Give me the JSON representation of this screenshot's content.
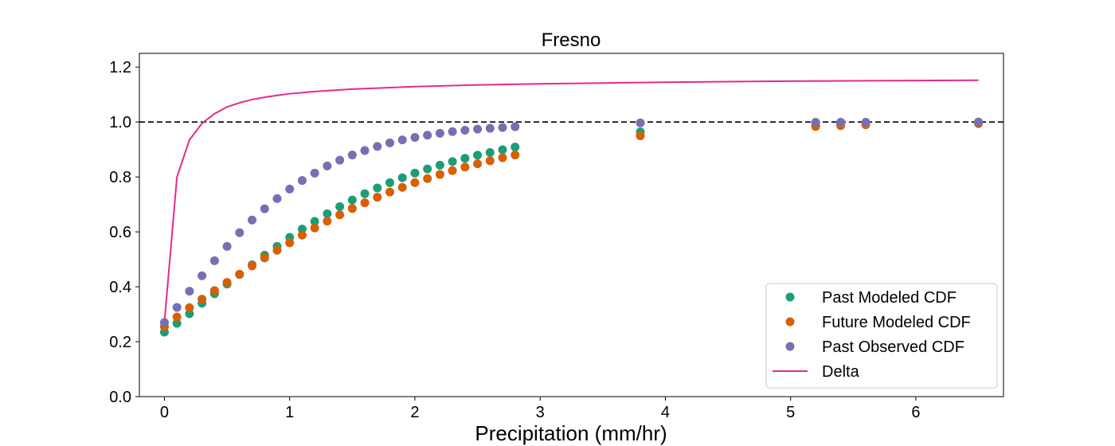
{
  "chart_data": {
    "type": "scatter",
    "title": "Fresno",
    "xlabel": "Precipitation (mm/hr)",
    "ylabel": "",
    "xlim": [
      -0.2,
      6.7
    ],
    "ylim": [
      0,
      1.25
    ],
    "x_ticks": [
      0,
      1,
      2,
      3,
      4,
      5,
      6
    ],
    "y_ticks": [
      0.0,
      0.2,
      0.4,
      0.6,
      0.8,
      1.0,
      1.2
    ],
    "x_tick_labels": [
      "0",
      "1",
      "2",
      "3",
      "4",
      "5",
      "6"
    ],
    "y_tick_labels": [
      "0.0",
      "0.2",
      "0.4",
      "0.6",
      "0.8",
      "1.0",
      "1.2"
    ],
    "grid": false,
    "legend_position": "bottom-right",
    "reference_line": {
      "y": 1.0,
      "style": "dashed",
      "color": "#000000"
    },
    "series": [
      {
        "name": "Past Modeled CDF",
        "kind": "scatter",
        "color": "#1b9e77",
        "points": [
          [
            0.0,
            0.235
          ],
          [
            0.1,
            0.267
          ],
          [
            0.2,
            0.302
          ],
          [
            0.3,
            0.34
          ],
          [
            0.4,
            0.375
          ],
          [
            0.5,
            0.41
          ],
          [
            0.6,
            0.445
          ],
          [
            0.7,
            0.48
          ],
          [
            0.8,
            0.515
          ],
          [
            0.9,
            0.547
          ],
          [
            1.0,
            0.58
          ],
          [
            1.1,
            0.61
          ],
          [
            1.2,
            0.638
          ],
          [
            1.3,
            0.666
          ],
          [
            1.4,
            0.692
          ],
          [
            1.5,
            0.716
          ],
          [
            1.6,
            0.739
          ],
          [
            1.7,
            0.76
          ],
          [
            1.8,
            0.779
          ],
          [
            1.9,
            0.797
          ],
          [
            2.0,
            0.814
          ],
          [
            2.1,
            0.829
          ],
          [
            2.2,
            0.843
          ],
          [
            2.3,
            0.856
          ],
          [
            2.4,
            0.868
          ],
          [
            2.5,
            0.879
          ],
          [
            2.6,
            0.889
          ],
          [
            2.7,
            0.899
          ],
          [
            2.8,
            0.909
          ],
          [
            3.8,
            0.964
          ],
          [
            5.2,
            0.989
          ],
          [
            5.4,
            0.992
          ],
          [
            5.6,
            0.995
          ],
          [
            6.5,
            0.999
          ]
        ]
      },
      {
        "name": "Future Modeled CDF",
        "kind": "scatter",
        "color": "#d95f02",
        "points": [
          [
            0.0,
            0.255
          ],
          [
            0.1,
            0.29
          ],
          [
            0.2,
            0.324
          ],
          [
            0.3,
            0.355
          ],
          [
            0.4,
            0.386
          ],
          [
            0.5,
            0.416
          ],
          [
            0.6,
            0.446
          ],
          [
            0.7,
            0.476
          ],
          [
            0.8,
            0.505
          ],
          [
            0.9,
            0.533
          ],
          [
            1.0,
            0.56
          ],
          [
            1.1,
            0.588
          ],
          [
            1.2,
            0.614
          ],
          [
            1.3,
            0.639
          ],
          [
            1.4,
            0.662
          ],
          [
            1.5,
            0.685
          ],
          [
            1.6,
            0.706
          ],
          [
            1.7,
            0.726
          ],
          [
            1.8,
            0.745
          ],
          [
            1.9,
            0.762
          ],
          [
            2.0,
            0.779
          ],
          [
            2.1,
            0.794
          ],
          [
            2.2,
            0.809
          ],
          [
            2.3,
            0.823
          ],
          [
            2.4,
            0.836
          ],
          [
            2.5,
            0.848
          ],
          [
            2.6,
            0.859
          ],
          [
            2.7,
            0.87
          ],
          [
            2.8,
            0.88
          ],
          [
            3.8,
            0.95
          ],
          [
            5.2,
            0.984
          ],
          [
            5.4,
            0.987
          ],
          [
            5.6,
            0.99
          ],
          [
            6.5,
            0.994
          ]
        ]
      },
      {
        "name": "Past Observed CDF",
        "kind": "scatter",
        "color": "#7570b3",
        "points": [
          [
            0.0,
            0.27
          ],
          [
            0.1,
            0.325
          ],
          [
            0.2,
            0.384
          ],
          [
            0.3,
            0.44
          ],
          [
            0.4,
            0.495
          ],
          [
            0.5,
            0.547
          ],
          [
            0.6,
            0.597
          ],
          [
            0.7,
            0.643
          ],
          [
            0.8,
            0.684
          ],
          [
            0.9,
            0.721
          ],
          [
            1.0,
            0.756
          ],
          [
            1.1,
            0.787
          ],
          [
            1.2,
            0.814
          ],
          [
            1.3,
            0.84
          ],
          [
            1.4,
            0.861
          ],
          [
            1.5,
            0.88
          ],
          [
            1.6,
            0.896
          ],
          [
            1.7,
            0.911
          ],
          [
            1.8,
            0.924
          ],
          [
            1.9,
            0.935
          ],
          [
            2.0,
            0.944
          ],
          [
            2.1,
            0.952
          ],
          [
            2.2,
            0.959
          ],
          [
            2.3,
            0.965
          ],
          [
            2.4,
            0.97
          ],
          [
            2.5,
            0.974
          ],
          [
            2.6,
            0.977
          ],
          [
            2.7,
            0.98
          ],
          [
            2.8,
            0.983
          ],
          [
            3.8,
            0.997
          ],
          [
            5.2,
            0.999
          ],
          [
            5.4,
            0.999
          ],
          [
            5.6,
            0.999
          ],
          [
            6.5,
            1.0
          ]
        ]
      },
      {
        "name": "Delta",
        "kind": "line",
        "color": "#e7298a",
        "points": [
          [
            0.0,
            0.27
          ],
          [
            0.1,
            0.8
          ],
          [
            0.2,
            0.935
          ],
          [
            0.3,
            0.995
          ],
          [
            0.4,
            1.03
          ],
          [
            0.5,
            1.055
          ],
          [
            0.6,
            1.07
          ],
          [
            0.7,
            1.082
          ],
          [
            0.8,
            1.09
          ],
          [
            0.9,
            1.097
          ],
          [
            1.0,
            1.103
          ],
          [
            1.2,
            1.111
          ],
          [
            1.5,
            1.12
          ],
          [
            2.0,
            1.129
          ],
          [
            2.5,
            1.135
          ],
          [
            3.0,
            1.139
          ],
          [
            3.5,
            1.142
          ],
          [
            4.0,
            1.145
          ],
          [
            4.5,
            1.147
          ],
          [
            5.0,
            1.149
          ],
          [
            5.5,
            1.15
          ],
          [
            6.0,
            1.151
          ],
          [
            6.5,
            1.152
          ]
        ]
      }
    ]
  }
}
